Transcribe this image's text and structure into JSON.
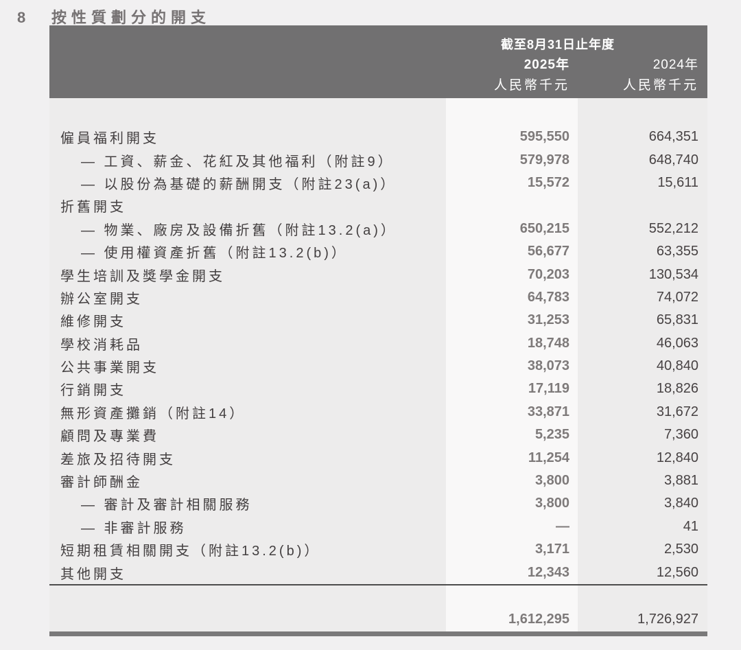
{
  "page": {
    "section_number": "8",
    "title": "按性質劃分的開支"
  },
  "table": {
    "header": {
      "period": "截至8月31日止年度",
      "col_2025": {
        "year": "2025年",
        "unit": "人民幣千元"
      },
      "col_2024": {
        "year": "2024年",
        "unit": "人民幣千元"
      }
    },
    "rows": [
      {
        "label": "僱員福利開支",
        "v2025": "595,550",
        "v2024": "664,351",
        "sub": false
      },
      {
        "label": "— 工資、薪金、花紅及其他福利（附註9）",
        "v2025": "579,978",
        "v2024": "648,740",
        "sub": true
      },
      {
        "label": "— 以股份為基礎的薪酬開支（附註23(a)）",
        "v2025": "15,572",
        "v2024": "15,611",
        "sub": true
      },
      {
        "label": "折舊開支",
        "v2025": "",
        "v2024": "",
        "sub": false
      },
      {
        "label": "— 物業、廠房及設備折舊（附註13.2(a)）",
        "v2025": "650,215",
        "v2024": "552,212",
        "sub": true
      },
      {
        "label": "— 使用權資產折舊（附註13.2(b)）",
        "v2025": "56,677",
        "v2024": "63,355",
        "sub": true
      },
      {
        "label": "學生培訓及獎學金開支",
        "v2025": "70,203",
        "v2024": "130,534",
        "sub": false
      },
      {
        "label": "辦公室開支",
        "v2025": "64,783",
        "v2024": "74,072",
        "sub": false
      },
      {
        "label": "維修開支",
        "v2025": "31,253",
        "v2024": "65,831",
        "sub": false
      },
      {
        "label": "學校消耗品",
        "v2025": "18,748",
        "v2024": "46,063",
        "sub": false
      },
      {
        "label": "公共事業開支",
        "v2025": "38,073",
        "v2024": "40,840",
        "sub": false
      },
      {
        "label": "行銷開支",
        "v2025": "17,119",
        "v2024": "18,826",
        "sub": false
      },
      {
        "label": "無形資產攤銷（附註14）",
        "v2025": "33,871",
        "v2024": "31,672",
        "sub": false
      },
      {
        "label": "顧問及專業費",
        "v2025": "5,235",
        "v2024": "7,360",
        "sub": false
      },
      {
        "label": "差旅及招待開支",
        "v2025": "11,254",
        "v2024": "12,840",
        "sub": false
      },
      {
        "label": "審計師酬金",
        "v2025": "3,800",
        "v2024": "3,881",
        "sub": false
      },
      {
        "label": "— 審計及審計相關服務",
        "v2025": "3,800",
        "v2024": "3,840",
        "sub": true
      },
      {
        "label": "— 非審計服務",
        "v2025": "—",
        "v2024": "41",
        "sub": true
      },
      {
        "label": "短期租賃相關開支（附註13.2(b)）",
        "v2025": "3,171",
        "v2024": "2,530",
        "sub": false
      },
      {
        "label": "其他開支",
        "v2025": "12,343",
        "v2024": "12,560",
        "sub": false
      }
    ],
    "total": {
      "v2025": "1,612,295",
      "v2024": "1,726,927"
    }
  },
  "colors": {
    "page_bg": "#f1f0f1",
    "table_bg": "#edecec",
    "header_bg": "#717071",
    "header_text": "#ffffff",
    "highlight_column_bg": "#f9f8f8",
    "label_text": "#433f40",
    "value_2025_text": "#7e7a7a",
    "value_2024_text": "#474243",
    "rule": "#4c4c4c",
    "bottom_bar": "#7a797a",
    "title_text": "#767273"
  }
}
